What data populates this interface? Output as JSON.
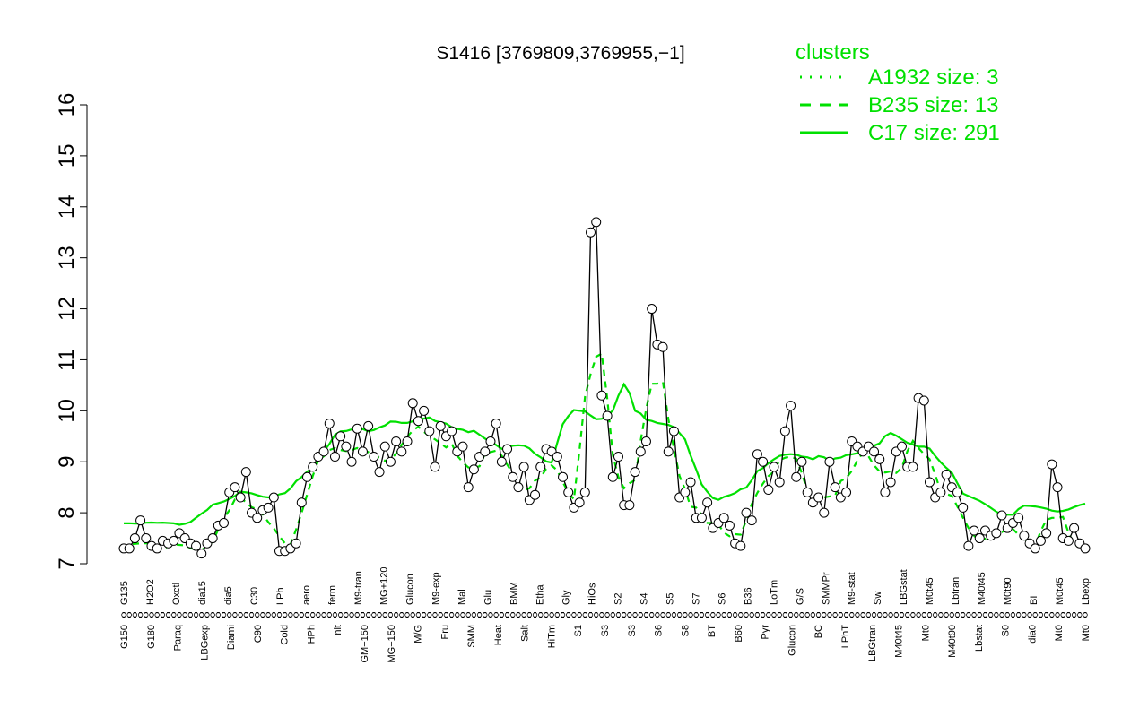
{
  "chart_data": {
    "type": "line",
    "title": "S1416 [3769809,3769955,−1]",
    "xlabel": "",
    "ylabel": "",
    "ylim": [
      7,
      16
    ],
    "yticks": [
      7,
      8,
      9,
      10,
      11,
      12,
      13,
      14,
      15,
      16
    ],
    "legend": {
      "title": "clusters",
      "placement": "top-right",
      "entries": [
        {
          "label": "A1932 size: 3",
          "style": "dotted"
        },
        {
          "label": "B235 size: 13",
          "style": "dashed"
        },
        {
          "label": "C17 size: 291",
          "style": "solid"
        }
      ]
    },
    "x_tick_labels_upper": [
      "G135",
      "H2O2",
      "Oxctl",
      "dia15",
      "dia5",
      "C30",
      "LPh",
      "aero",
      "ferm",
      "M9-tran",
      "MG+120",
      "Glucon",
      "M9-exp",
      "Mal",
      "Glu",
      "BMM",
      "Etha",
      "Gly",
      "HiOs",
      "S2",
      "S4",
      "S5",
      "S7",
      "S6",
      "B36",
      "LoTm",
      "G/S",
      "SMMPr",
      "M9-stat",
      "Sw",
      "LBGstat",
      "M0t45",
      "Lbtran",
      "M40t45",
      "M0t90",
      "BI",
      "M0t45",
      "Lbexp"
    ],
    "x_tick_labels_lower": [
      "G150",
      "G180",
      "Paraq",
      "LBGexp",
      "Diami",
      "C90",
      "Cold",
      "HPh",
      "nit",
      "GM+150",
      "MG+150",
      "M/G",
      "Fru",
      "SMM",
      "Heat",
      "Salt",
      "HiTm",
      "S1",
      "S3",
      "S3",
      "S6",
      "S8",
      "BT",
      "B60",
      "Pyr",
      "Glucon",
      "BC",
      "LPhT",
      "LBGtran",
      "M40t45",
      "Mt0",
      "M40t90",
      "Lbstat",
      "S0",
      "dia0",
      "Mt0",
      "Mt0"
    ],
    "series": [
      {
        "values": [
          7.3,
          7.3,
          7.5,
          7.85,
          7.5,
          7.35,
          7.3,
          7.45,
          7.4,
          7.45,
          7.6,
          7.5,
          7.4,
          7.35,
          7.2,
          7.4,
          7.5,
          7.75,
          7.8,
          8.4,
          8.5,
          8.3,
          8.8,
          8.0,
          7.9,
          8.05,
          8.1,
          8.3,
          7.25,
          7.25,
          7.3,
          7.4,
          8.2,
          8.7,
          8.9,
          9.1,
          9.2,
          9.75,
          9.1,
          9.5,
          9.3,
          9.0,
          9.65,
          9.2,
          9.7,
          9.1,
          8.8,
          9.3,
          9.0,
          9.4,
          9.2,
          9.4,
          10.15,
          9.8,
          10.0,
          9.6,
          8.9,
          9.7,
          9.5,
          9.6,
          9.2,
          9.3,
          8.5,
          8.85,
          9.1,
          9.2,
          9.4,
          9.75,
          9.0,
          9.25,
          8.7,
          8.5,
          8.9,
          8.25,
          8.35,
          8.9,
          9.25,
          9.2,
          9.1,
          8.7,
          8.4,
          8.1,
          8.2,
          8.4,
          13.5,
          13.7,
          10.3,
          9.9,
          8.7,
          9.1,
          8.15,
          8.15,
          8.8,
          9.2,
          9.4,
          12.0,
          11.3,
          11.25,
          9.2,
          9.6,
          8.3,
          8.4,
          8.6,
          7.9,
          7.9,
          8.2,
          7.7,
          7.8,
          7.9,
          7.75,
          7.4,
          7.35,
          8.0,
          7.85,
          9.15,
          9.0,
          8.45,
          8.9,
          8.6,
          9.6,
          10.1,
          8.7,
          9.0,
          8.4,
          8.2,
          8.3,
          8.0,
          9.0,
          8.5,
          8.3,
          8.4,
          9.4,
          9.3,
          9.2,
          9.3,
          9.2,
          9.05,
          8.4,
          8.6,
          9.2,
          9.3,
          8.9,
          8.9,
          10.25,
          10.2,
          8.6,
          8.3,
          8.4,
          8.75,
          8.5,
          8.4,
          8.1,
          7.35,
          7.65,
          7.5,
          7.65,
          7.55,
          7.6,
          7.95,
          7.7,
          7.8,
          7.9,
          7.55,
          7.4,
          7.3,
          7.45,
          7.6,
          8.95,
          8.5,
          7.5,
          7.45,
          7.7,
          7.4,
          7.3
        ]
      }
    ]
  }
}
